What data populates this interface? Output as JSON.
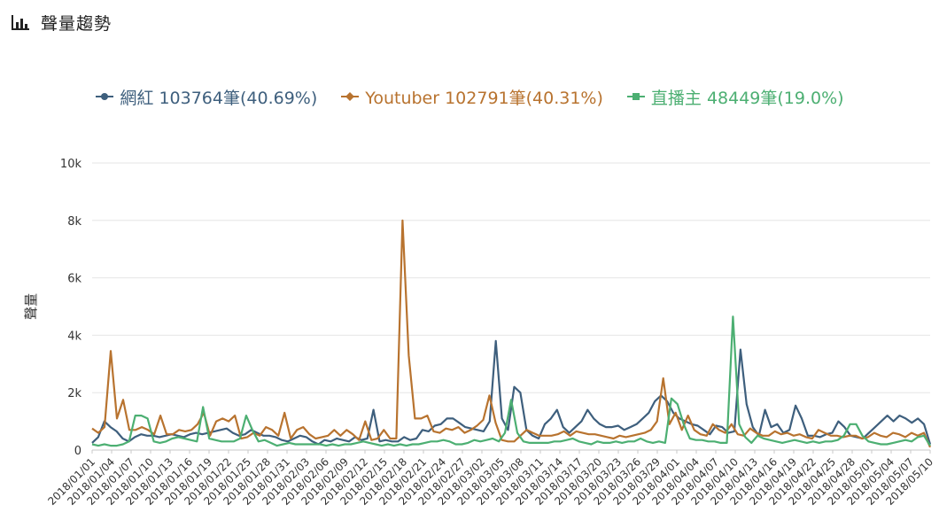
{
  "header": {
    "title": "聲量趨勢",
    "icon": "bar-chart-icon"
  },
  "legend": [
    {
      "label": "網紅 103764筆(40.69%)",
      "color": "#3e5f7d",
      "marker": "circle"
    },
    {
      "label": "Youtuber 102791筆(40.31%)",
      "color": "#b8732f",
      "marker": "diamond"
    },
    {
      "label": "直播主 48449筆(19.0%)",
      "color": "#4caf72",
      "marker": "square"
    }
  ],
  "chart_data": {
    "type": "line",
    "ylabel": "聲量",
    "ylim": [
      0,
      10000
    ],
    "y_ticks": [
      "0",
      "2k",
      "4k",
      "6k",
      "8k",
      "10k"
    ],
    "x_start": "2018/01/01",
    "x_end": "2018/05/10",
    "x_tick_labels": [
      "2018/01/01",
      "2018/01/04",
      "2018/01/07",
      "2018/01/10",
      "2018/01/13",
      "2018/01/16",
      "2018/01/19",
      "2018/01/22",
      "2018/01/25",
      "2018/01/28",
      "2018/01/31",
      "2018/02/03",
      "2018/02/06",
      "2018/02/09",
      "2018/02/12",
      "2018/02/15",
      "2018/02/18",
      "2018/02/21",
      "2018/02/24",
      "2018/02/27",
      "2018/03/02",
      "2018/03/05",
      "2018/03/08",
      "2018/03/11",
      "2018/03/14",
      "2018/03/17",
      "2018/03/20",
      "2018/03/23",
      "2018/03/26",
      "2018/03/29",
      "2018/04/01",
      "2018/04/04",
      "2018/04/07",
      "2018/04/10",
      "2018/04/13",
      "2018/04/16",
      "2018/04/19",
      "2018/04/22",
      "2018/04/25",
      "2018/04/28",
      "2018/05/01",
      "2018/05/04",
      "2018/05/07",
      "2018/05/10"
    ],
    "grid": true,
    "legend_position": "top",
    "series": [
      {
        "name": "網紅",
        "color": "#3e5f7d",
        "values": [
          250,
          450,
          1000,
          800,
          650,
          400,
          300,
          450,
          550,
          500,
          500,
          450,
          500,
          550,
          500,
          450,
          550,
          600,
          550,
          600,
          650,
          700,
          750,
          600,
          500,
          550,
          700,
          600,
          500,
          500,
          450,
          350,
          300,
          400,
          500,
          450,
          300,
          200,
          350,
          300,
          400,
          350,
          300,
          450,
          350,
          400,
          1400,
          300,
          350,
          300,
          300,
          450,
          350,
          400,
          700,
          650,
          850,
          900,
          1100,
          1100,
          950,
          800,
          750,
          700,
          650,
          1000,
          3800,
          1100,
          700,
          2200,
          2000,
          700,
          500,
          400,
          900,
          1100,
          1400,
          800,
          600,
          800,
          1000,
          1400,
          1100,
          900,
          800,
          800,
          850,
          700,
          800,
          900,
          1100,
          1300,
          1700,
          1900,
          1700,
          1300,
          1100,
          1000,
          900,
          850,
          700,
          550,
          850,
          800,
          600,
          650,
          3500,
          1600,
          800,
          500,
          1400,
          800,
          900,
          600,
          700,
          1550,
          1100,
          500,
          500,
          450,
          550,
          600,
          1000,
          800,
          500,
          450,
          400,
          600,
          800,
          1000,
          1200,
          1000,
          1200,
          1100,
          950,
          1100,
          900,
          200
        ]
      },
      {
        "name": "Youtuber",
        "color": "#b8732f",
        "values": [
          750,
          600,
          800,
          3450,
          1100,
          1750,
          700,
          700,
          800,
          700,
          550,
          1200,
          550,
          550,
          700,
          650,
          700,
          900,
          1300,
          500,
          1000,
          1100,
          1000,
          1200,
          400,
          450,
          600,
          500,
          800,
          700,
          500,
          1300,
          400,
          700,
          800,
          550,
          400,
          450,
          500,
          700,
          500,
          700,
          550,
          350,
          1000,
          350,
          400,
          700,
          400,
          400,
          8000,
          3300,
          1100,
          1100,
          1200,
          650,
          600,
          750,
          700,
          800,
          600,
          700,
          850,
          1050,
          1900,
          950,
          350,
          300,
          300,
          500,
          700,
          600,
          500,
          500,
          500,
          550,
          650,
          500,
          650,
          600,
          550,
          550,
          500,
          450,
          400,
          500,
          450,
          500,
          550,
          600,
          700,
          1000,
          2500,
          900,
          1300,
          700,
          1200,
          700,
          550,
          500,
          900,
          700,
          600,
          900,
          550,
          500,
          750,
          600,
          500,
          500,
          650,
          550,
          600,
          500,
          550,
          450,
          400,
          700,
          600,
          500,
          500,
          450,
          500,
          500,
          400,
          450,
          600,
          500,
          450,
          600,
          550,
          450,
          600,
          500,
          600,
          100
        ]
      },
      {
        "name": "直播主",
        "color": "#4caf72",
        "values": [
          200,
          150,
          200,
          150,
          150,
          200,
          300,
          1200,
          1200,
          1100,
          300,
          250,
          300,
          400,
          450,
          400,
          350,
          300,
          1500,
          400,
          350,
          300,
          300,
          300,
          400,
          1200,
          700,
          300,
          350,
          250,
          150,
          200,
          250,
          200,
          200,
          200,
          200,
          200,
          150,
          200,
          150,
          200,
          200,
          250,
          300,
          250,
          200,
          150,
          200,
          150,
          200,
          150,
          200,
          200,
          250,
          300,
          300,
          350,
          300,
          200,
          200,
          250,
          350,
          300,
          350,
          400,
          300,
          600,
          1750,
          600,
          300,
          250,
          250,
          250,
          250,
          300,
          300,
          350,
          400,
          300,
          250,
          200,
          300,
          250,
          250,
          300,
          250,
          300,
          300,
          400,
          300,
          250,
          300,
          250,
          1800,
          1600,
          900,
          400,
          350,
          350,
          300,
          300,
          250,
          250,
          4650,
          900,
          450,
          250,
          500,
          400,
          350,
          300,
          250,
          300,
          350,
          300,
          250,
          300,
          250,
          300,
          300,
          350,
          500,
          900,
          900,
          500,
          300,
          250,
          200,
          200,
          250,
          300,
          350,
          300,
          450,
          500,
          150
        ]
      }
    ]
  }
}
